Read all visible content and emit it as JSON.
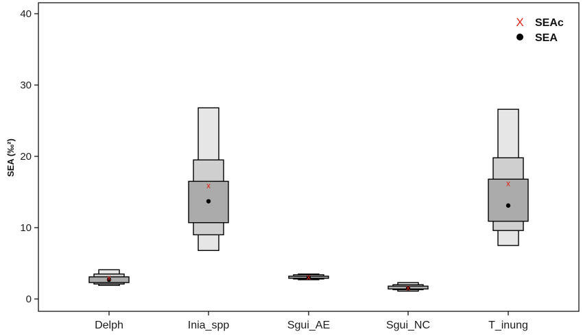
{
  "chart_data": {
    "type": "boxplot",
    "ylabel": "SEA (‰²)",
    "ylim": [
      0,
      41
    ],
    "yticks": [
      0,
      10,
      20,
      30,
      40
    ],
    "categories": [
      "Delph",
      "Inia_spp",
      "Sgui_AE",
      "Sgui_NC",
      "T_inung"
    ],
    "credible_intervals": {
      "outer": [
        [
          1.9,
          4.1
        ],
        [
          6.8,
          26.8
        ],
        [
          2.7,
          3.5
        ],
        [
          1.1,
          2.3
        ],
        [
          7.5,
          26.6
        ]
      ],
      "middle": [
        [
          2.1,
          3.5
        ],
        [
          9.0,
          19.5
        ],
        [
          2.8,
          3.4
        ],
        [
          1.3,
          2.0
        ],
        [
          9.6,
          19.8
        ]
      ],
      "inner": [
        [
          2.3,
          3.1
        ],
        [
          10.7,
          16.5
        ],
        [
          2.9,
          3.2
        ],
        [
          1.4,
          1.8
        ],
        [
          10.9,
          16.8
        ]
      ]
    },
    "series": [
      {
        "name": "SEAc",
        "values": [
          3.0,
          15.9,
          3.1,
          1.6,
          16.2
        ]
      },
      {
        "name": "SEA",
        "values": [
          2.7,
          13.7,
          3.0,
          1.5,
          13.1
        ]
      }
    ],
    "legend_position": "top-right",
    "colors": {
      "outer": "#e6e6e6",
      "middle": "#cfcfcf",
      "inner": "#ababab",
      "seac": "#e0241b",
      "sea": "#000000",
      "stroke": "#000000"
    }
  }
}
